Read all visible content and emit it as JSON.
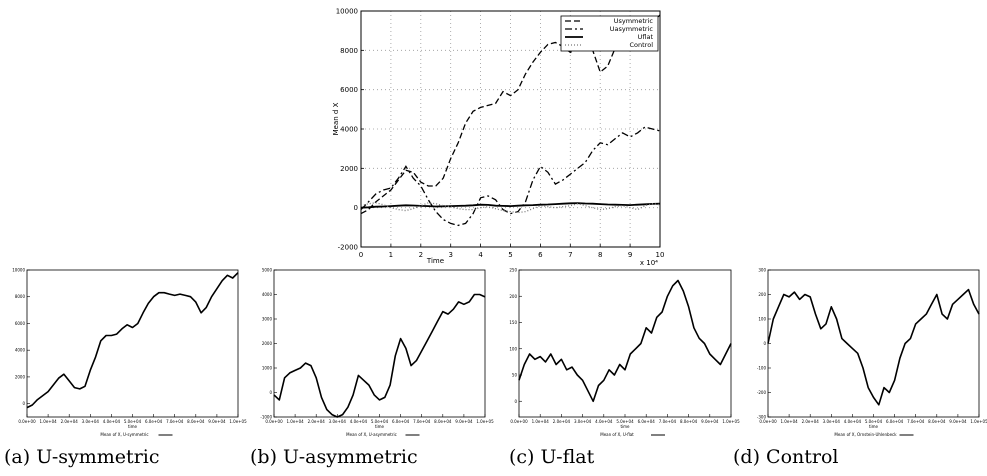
{
  "captions": [
    "(a) U-symmetric",
    "(b) U-asymmetric",
    "(c) U-flat",
    "(d) Control"
  ],
  "chart_data": [
    {
      "type": "line",
      "xlabel": "Time",
      "ylabel": "Mean d X",
      "x_multiplier": "x 10⁴",
      "xlim": [
        0,
        10
      ],
      "ylim": [
        -2000,
        10000
      ],
      "xticks": [
        "0",
        "1",
        "2",
        "3",
        "4",
        "5",
        "6",
        "7",
        "8",
        "9",
        "10"
      ],
      "yticks": [
        "-2000",
        "0",
        "2000",
        "4000",
        "6000",
        "8000",
        "10000"
      ],
      "grid": true,
      "legend_position": "top-right",
      "x": [
        0,
        0.25,
        0.5,
        0.75,
        1,
        1.25,
        1.5,
        1.75,
        2,
        2.25,
        2.5,
        2.75,
        3,
        3.25,
        3.5,
        3.75,
        4,
        4.25,
        4.5,
        4.75,
        5,
        5.25,
        5.5,
        5.75,
        6,
        6.25,
        6.5,
        6.75,
        7,
        7.25,
        7.5,
        7.75,
        8,
        8.25,
        8.5,
        8.75,
        9,
        9.25,
        9.5,
        9.75,
        10
      ],
      "series": [
        {
          "name": "Usymmetric",
          "style": "dashed",
          "values": [
            -300,
            -100,
            300,
            600,
            900,
            1400,
            1900,
            1800,
            1300,
            1100,
            1100,
            1500,
            2500,
            3300,
            4300,
            4900,
            5100,
            5200,
            5300,
            5900,
            5700,
            6000,
            6800,
            7400,
            7900,
            8300,
            8400,
            8200,
            7900,
            8100,
            8200,
            8000,
            6900,
            7200,
            8100,
            8700,
            9300,
            9700,
            9500,
            9400,
            9800
          ]
        },
        {
          "name": "Uasymmetric",
          "style": "dashdot",
          "values": [
            -100,
            300,
            700,
            900,
            1000,
            1500,
            2100,
            1500,
            1100,
            400,
            -200,
            -600,
            -800,
            -900,
            -800,
            -300,
            500,
            600,
            400,
            -100,
            -300,
            -200,
            300,
            1400,
            2100,
            1800,
            1200,
            1400,
            1700,
            2000,
            2300,
            2900,
            3300,
            3200,
            3500,
            3800,
            3600,
            3800,
            4100,
            4000,
            3900
          ]
        },
        {
          "name": "Uflat",
          "style": "solid",
          "values": [
            0,
            20,
            50,
            60,
            80,
            100,
            120,
            110,
            90,
            80,
            60,
            70,
            80,
            90,
            100,
            120,
            150,
            140,
            100,
            90,
            80,
            100,
            120,
            130,
            150,
            160,
            180,
            200,
            220,
            230,
            210,
            200,
            180,
            160,
            150,
            140,
            130,
            150,
            170,
            190,
            200
          ]
        },
        {
          "name": "Control",
          "style": "dotted",
          "values": [
            100,
            200,
            250,
            150,
            0,
            -100,
            -150,
            -50,
            100,
            250,
            200,
            100,
            50,
            -50,
            -100,
            -100,
            0,
            50,
            -50,
            -150,
            -200,
            -250,
            -200,
            -50,
            100,
            50,
            0,
            50,
            100,
            200,
            100,
            0,
            -100,
            -50,
            50,
            100,
            0,
            -100,
            100,
            200,
            150
          ]
        }
      ]
    },
    {
      "type": "line",
      "legend": "Mean of X, U-symmetric",
      "xlabel": "time",
      "xticks": [
        "0.0e+00",
        "1.0e+04",
        "2.0e+04",
        "3.0e+04",
        "4.0e+04",
        "5.0e+04",
        "6.0e+04",
        "7.0e+04",
        "8.0e+04",
        "9.0e+04",
        "1.0e+05"
      ],
      "yticks": [
        "0",
        "2000",
        "4000",
        "6000",
        "8000",
        "10000"
      ],
      "ylim": [
        -1000,
        10000
      ],
      "values": [
        -300,
        -100,
        300,
        600,
        900,
        1400,
        1900,
        2200,
        1700,
        1200,
        1100,
        1300,
        2500,
        3500,
        4700,
        5100,
        5100,
        5200,
        5600,
        5900,
        5700,
        6000,
        6800,
        7500,
        8000,
        8300,
        8300,
        8200,
        8100,
        8200,
        8100,
        8000,
        7600,
        6800,
        7200,
        8000,
        8600,
        9200,
        9600,
        9400,
        9800
      ]
    },
    {
      "type": "line",
      "legend": "Mean of X, U-asymmetric",
      "xlabel": "time",
      "xticks": [
        "0.0e+00",
        "1.0e+04",
        "2.0e+04",
        "3.0e+04",
        "4.0e+04",
        "5.0e+04",
        "6.0e+04",
        "7.0e+04",
        "8.0e+04",
        "9.0e+04",
        "1.0e+05"
      ],
      "yticks": [
        "-1000",
        "0",
        "1000",
        "2000",
        "3000",
        "4000",
        "5000"
      ],
      "ylim": [
        -1000,
        5000
      ],
      "values": [
        -100,
        -300,
        600,
        800,
        900,
        1000,
        1200,
        1100,
        600,
        -200,
        -700,
        -900,
        -1000,
        -900,
        -600,
        -100,
        700,
        500,
        300,
        -100,
        -300,
        -200,
        300,
        1500,
        2200,
        1800,
        1100,
        1300,
        1700,
        2100,
        2500,
        2900,
        3300,
        3200,
        3400,
        3700,
        3600,
        3700,
        4000,
        4000,
        3900
      ]
    },
    {
      "type": "line",
      "legend": "Mean of X, U-flat",
      "xlabel": "time",
      "xticks": [
        "0.0e+00",
        "1.0e+04",
        "2.0e+04",
        "3.0e+04",
        "4.0e+04",
        "5.0e+04",
        "6.0e+04",
        "7.0e+04",
        "8.0e+04",
        "9.0e+04",
        "1.0e+05"
      ],
      "yticks": [
        "0",
        "50",
        "100",
        "150",
        "200",
        "250"
      ],
      "ylim": [
        -30,
        250
      ],
      "values": [
        40,
        70,
        90,
        80,
        85,
        75,
        90,
        70,
        80,
        60,
        65,
        50,
        40,
        20,
        0,
        30,
        40,
        60,
        50,
        70,
        60,
        90,
        100,
        110,
        140,
        130,
        160,
        170,
        200,
        220,
        230,
        210,
        180,
        140,
        120,
        110,
        90,
        80,
        70,
        90,
        110
      ]
    },
    {
      "type": "line",
      "legend": "Mean of X, Ornstein-Uhlenbeck",
      "xlabel": "time",
      "xticks": [
        "0.0e+00",
        "1.0e+04",
        "2.0e+04",
        "3.0e+04",
        "4.0e+04",
        "5.0e+04",
        "6.0e+04",
        "7.0e+04",
        "8.0e+04",
        "9.0e+04",
        "1.0e+05"
      ],
      "yticks": [
        "-300",
        "-200",
        "-100",
        "0",
        "100",
        "200",
        "300"
      ],
      "ylim": [
        -300,
        300
      ],
      "values": [
        0,
        100,
        150,
        200,
        190,
        210,
        180,
        200,
        190,
        120,
        60,
        80,
        150,
        100,
        20,
        0,
        -20,
        -40,
        -100,
        -180,
        -220,
        -250,
        -180,
        -200,
        -150,
        -60,
        0,
        20,
        80,
        100,
        120,
        160,
        200,
        120,
        100,
        160,
        180,
        200,
        220,
        160,
        120
      ]
    }
  ]
}
